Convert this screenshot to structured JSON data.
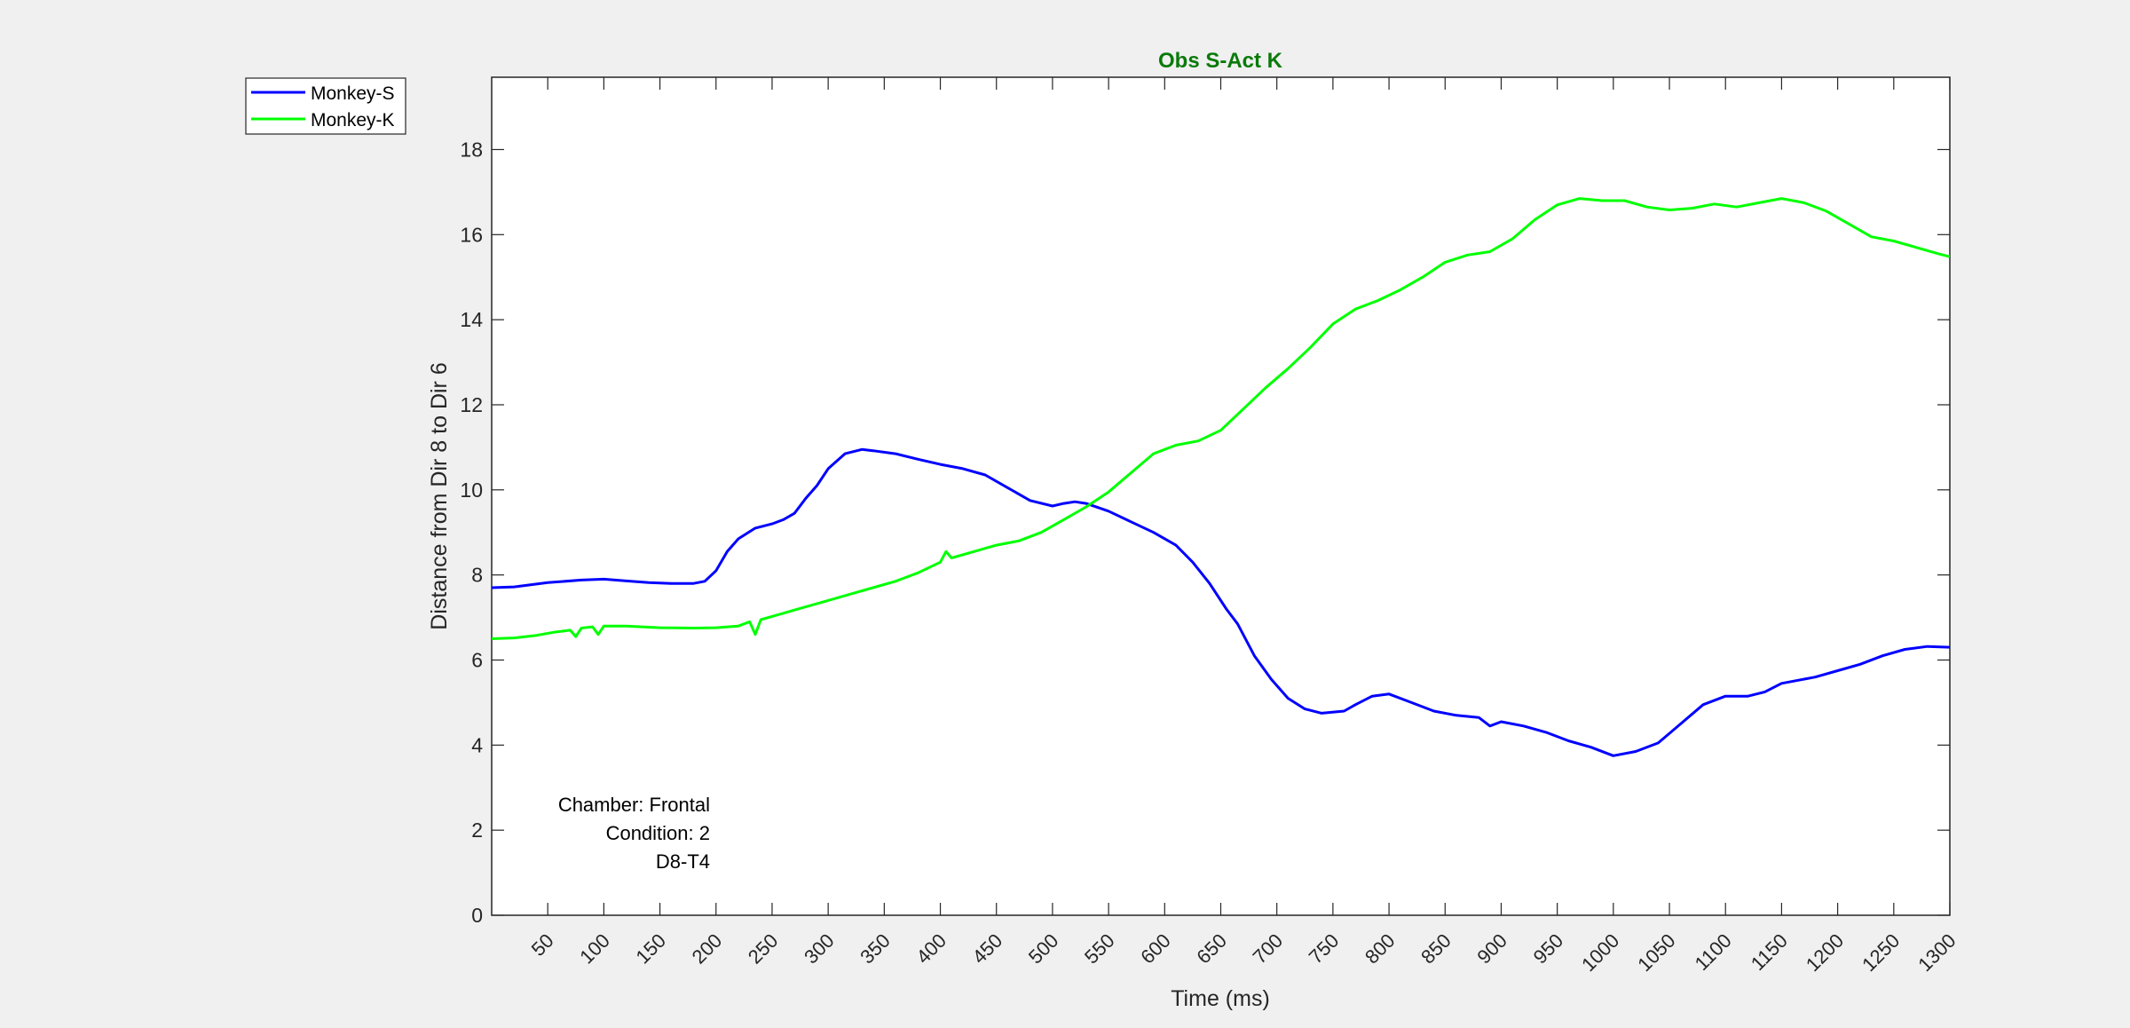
{
  "chart_data": {
    "type": "line",
    "title": "Obs S-Act K",
    "title_color": "#0a7a0a",
    "xlabel": "Time (ms)",
    "ylabel": "Distance from Dir 8 to Dir 6",
    "xlim": [
      0,
      1300
    ],
    "ylim": [
      0,
      19.7
    ],
    "x_ticks": [
      50,
      100,
      150,
      200,
      250,
      300,
      350,
      400,
      450,
      500,
      550,
      600,
      650,
      700,
      750,
      800,
      850,
      900,
      950,
      1000,
      1050,
      1100,
      1150,
      1200,
      1250,
      1300
    ],
    "y_ticks": [
      0,
      2,
      4,
      6,
      8,
      10,
      12,
      14,
      16,
      18
    ],
    "grid": false,
    "legend_position": "outside-top-left",
    "annotations": [
      "Chamber: Frontal",
      "Condition: 2",
      "D8-T4"
    ],
    "series": [
      {
        "name": "Monkey-S",
        "color": "#0000ff",
        "points": [
          [
            0,
            7.7
          ],
          [
            20,
            7.72
          ],
          [
            50,
            7.82
          ],
          [
            80,
            7.88
          ],
          [
            100,
            7.9
          ],
          [
            120,
            7.86
          ],
          [
            140,
            7.82
          ],
          [
            160,
            7.8
          ],
          [
            180,
            7.8
          ],
          [
            190,
            7.85
          ],
          [
            200,
            8.1
          ],
          [
            210,
            8.55
          ],
          [
            220,
            8.85
          ],
          [
            235,
            9.1
          ],
          [
            250,
            9.2
          ],
          [
            260,
            9.3
          ],
          [
            270,
            9.45
          ],
          [
            280,
            9.8
          ],
          [
            290,
            10.1
          ],
          [
            300,
            10.5
          ],
          [
            315,
            10.85
          ],
          [
            330,
            10.95
          ],
          [
            340,
            10.92
          ],
          [
            360,
            10.85
          ],
          [
            380,
            10.72
          ],
          [
            400,
            10.6
          ],
          [
            420,
            10.5
          ],
          [
            440,
            10.35
          ],
          [
            460,
            10.05
          ],
          [
            480,
            9.75
          ],
          [
            500,
            9.62
          ],
          [
            510,
            9.68
          ],
          [
            520,
            9.72
          ],
          [
            530,
            9.68
          ],
          [
            550,
            9.5
          ],
          [
            570,
            9.25
          ],
          [
            590,
            9.0
          ],
          [
            610,
            8.7
          ],
          [
            625,
            8.3
          ],
          [
            640,
            7.8
          ],
          [
            655,
            7.2
          ],
          [
            665,
            6.85
          ],
          [
            680,
            6.1
          ],
          [
            695,
            5.55
          ],
          [
            710,
            5.1
          ],
          [
            725,
            4.85
          ],
          [
            740,
            4.75
          ],
          [
            760,
            4.8
          ],
          [
            770,
            4.95
          ],
          [
            785,
            5.15
          ],
          [
            800,
            5.2
          ],
          [
            820,
            5.0
          ],
          [
            840,
            4.8
          ],
          [
            860,
            4.7
          ],
          [
            880,
            4.65
          ],
          [
            890,
            4.45
          ],
          [
            900,
            4.55
          ],
          [
            920,
            4.45
          ],
          [
            940,
            4.3
          ],
          [
            960,
            4.1
          ],
          [
            980,
            3.95
          ],
          [
            1000,
            3.75
          ],
          [
            1020,
            3.85
          ],
          [
            1040,
            4.05
          ],
          [
            1060,
            4.5
          ],
          [
            1080,
            4.95
          ],
          [
            1100,
            5.15
          ],
          [
            1120,
            5.15
          ],
          [
            1135,
            5.25
          ],
          [
            1150,
            5.45
          ],
          [
            1180,
            5.6
          ],
          [
            1200,
            5.75
          ],
          [
            1220,
            5.9
          ],
          [
            1240,
            6.1
          ],
          [
            1260,
            6.25
          ],
          [
            1280,
            6.32
          ],
          [
            1300,
            6.3
          ]
        ]
      },
      {
        "name": "Monkey-K",
        "color": "#00ff00",
        "points": [
          [
            0,
            6.5
          ],
          [
            20,
            6.52
          ],
          [
            40,
            6.58
          ],
          [
            55,
            6.65
          ],
          [
            70,
            6.7
          ],
          [
            75,
            6.55
          ],
          [
            80,
            6.75
          ],
          [
            90,
            6.78
          ],
          [
            95,
            6.6
          ],
          [
            100,
            6.8
          ],
          [
            120,
            6.8
          ],
          [
            150,
            6.76
          ],
          [
            180,
            6.75
          ],
          [
            200,
            6.76
          ],
          [
            220,
            6.8
          ],
          [
            230,
            6.9
          ],
          [
            235,
            6.6
          ],
          [
            240,
            6.95
          ],
          [
            260,
            7.1
          ],
          [
            280,
            7.25
          ],
          [
            300,
            7.4
          ],
          [
            320,
            7.55
          ],
          [
            340,
            7.7
          ],
          [
            360,
            7.85
          ],
          [
            380,
            8.05
          ],
          [
            400,
            8.3
          ],
          [
            405,
            8.55
          ],
          [
            410,
            8.4
          ],
          [
            430,
            8.55
          ],
          [
            450,
            8.7
          ],
          [
            470,
            8.8
          ],
          [
            490,
            9.0
          ],
          [
            510,
            9.3
          ],
          [
            530,
            9.6
          ],
          [
            550,
            9.95
          ],
          [
            570,
            10.4
          ],
          [
            590,
            10.85
          ],
          [
            610,
            11.05
          ],
          [
            630,
            11.15
          ],
          [
            650,
            11.4
          ],
          [
            670,
            11.9
          ],
          [
            690,
            12.4
          ],
          [
            710,
            12.85
          ],
          [
            730,
            13.35
          ],
          [
            750,
            13.9
          ],
          [
            770,
            14.25
          ],
          [
            790,
            14.45
          ],
          [
            810,
            14.7
          ],
          [
            830,
            15.0
          ],
          [
            850,
            15.35
          ],
          [
            870,
            15.52
          ],
          [
            890,
            15.6
          ],
          [
            910,
            15.9
          ],
          [
            930,
            16.35
          ],
          [
            950,
            16.7
          ],
          [
            970,
            16.85
          ],
          [
            990,
            16.8
          ],
          [
            1010,
            16.8
          ],
          [
            1030,
            16.65
          ],
          [
            1050,
            16.58
          ],
          [
            1070,
            16.62
          ],
          [
            1090,
            16.72
          ],
          [
            1110,
            16.65
          ],
          [
            1130,
            16.75
          ],
          [
            1150,
            16.85
          ],
          [
            1170,
            16.75
          ],
          [
            1190,
            16.55
          ],
          [
            1210,
            16.25
          ],
          [
            1230,
            15.95
          ],
          [
            1250,
            15.85
          ],
          [
            1270,
            15.7
          ],
          [
            1290,
            15.55
          ],
          [
            1300,
            15.48
          ]
        ]
      }
    ]
  }
}
